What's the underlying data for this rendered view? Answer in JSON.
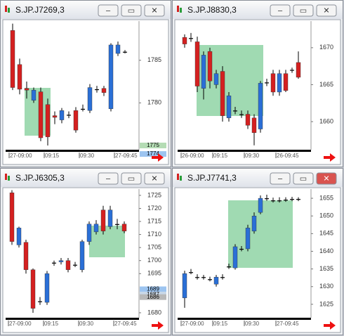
{
  "chart_data": [
    {
      "type": "candlestick",
      "title": "S.JP.J7269,3",
      "categories": [
        "27-09:00",
        null,
        null,
        null,
        null,
        "09:15",
        null,
        null,
        null,
        null,
        "09:30",
        null,
        null,
        null,
        null,
        "27-09:45",
        null
      ],
      "open": [
        1788.5,
        1784.5,
        1781.7,
        1780.3,
        1781.3,
        1779.8,
        1778.5,
        1778,
        1778.6,
        1779.1,
        1779.3,
        1779.1,
        1781.6,
        1781.7,
        1779.3,
        1785.8,
        1786
      ],
      "high": [
        1789.3,
        1785.2,
        1782.5,
        1781.8,
        1781.8,
        1780.5,
        1779,
        1779.4,
        1779,
        1779.5,
        1779.8,
        1782.2,
        1782,
        1782,
        1787,
        1787.2,
        1786.2
      ],
      "low": [
        1781.5,
        1781,
        1780.5,
        1780,
        1775.5,
        1775,
        1777.5,
        1777.6,
        1778.2,
        1776.5,
        1779,
        1778.8,
        1781.2,
        1780.8,
        1779,
        1785.5,
        1785.8
      ],
      "close": [
        1781.8,
        1781.6,
        1781.5,
        1781.5,
        1775.9,
        1776,
        1778.3,
        1779.1,
        1778.6,
        1776.8,
        1779.3,
        1781.8,
        1781.6,
        1781.2,
        1786.8,
        1786.8,
        1786
      ],
      "ylim": [
        1774.5,
        1789.6
      ],
      "yticks": [
        1780,
        1785
      ],
      "price_tags": [
        {
          "value": 1775,
          "color": "#b4dcb4"
        },
        {
          "value": 1774,
          "color": "#9cc4f0"
        }
      ]
    },
    {
      "type": "candlestick",
      "title": "S.JP.J8830,3",
      "categories": [
        "26-09:00",
        null,
        null,
        null,
        null,
        "09:15",
        null,
        null,
        null,
        null,
        "09:30",
        null,
        null,
        null,
        null,
        "26-09:45",
        null,
        null,
        null
      ],
      "open": [
        1671.4,
        1671.3,
        1670.8,
        1664.5,
        1669.5,
        1665,
        1666.8,
        1660.5,
        1661.5,
        1661,
        1661,
        1660.5,
        1659,
        1665.3,
        1666.5,
        1664,
        1666.5,
        1667,
        1668
      ],
      "high": [
        1671.8,
        1672,
        1671.5,
        1669.5,
        1670,
        1667,
        1667.5,
        1664,
        1662,
        1661.5,
        1661.5,
        1661,
        1665.5,
        1665.8,
        1667,
        1667,
        1667,
        1667.3,
        1669.5
      ],
      "low": [
        1670,
        1670.8,
        1664,
        1663,
        1664.5,
        1664.5,
        1660,
        1660,
        1661,
        1660.5,
        1659,
        1656.8,
        1658.5,
        1664.8,
        1663.5,
        1663.5,
        1664,
        1666.6,
        1665.8
      ],
      "close": [
        1670.5,
        1671.3,
        1664.8,
        1669,
        1665.5,
        1666.5,
        1660.8,
        1663.5,
        1661.5,
        1661,
        1659.5,
        1658.5,
        1665.2,
        1665.3,
        1664,
        1666.5,
        1664.2,
        1667,
        1666
      ],
      "ylim": [
        1656.2,
        1673.6
      ],
      "yticks": [
        1660,
        1665,
        1670
      ]
    },
    {
      "type": "candlestick",
      "title": "S.JP.J6305,3",
      "categories": [
        "27-09:00",
        null,
        null,
        null,
        null,
        "09:15",
        null,
        null,
        null,
        null,
        "09:30",
        null,
        null,
        null,
        null,
        "27-09:45",
        null
      ],
      "open": [
        1726,
        1706,
        1707,
        1696.5,
        1684.4,
        1684,
        1699.2,
        1699.5,
        1700,
        1698.4,
        1696.5,
        1707.3,
        1711,
        1719.4,
        1713,
        1714,
        1714
      ],
      "high": [
        1727,
        1713,
        1708,
        1697,
        1686,
        1696,
        1700,
        1701,
        1701,
        1699.5,
        1708,
        1715,
        1715.5,
        1721,
        1721,
        1716,
        1715
      ],
      "low": [
        1706,
        1705,
        1695,
        1680,
        1683,
        1683,
        1698,
        1698.5,
        1695.5,
        1697.5,
        1695.5,
        1706,
        1710,
        1710,
        1712,
        1712,
        1710.5
      ],
      "close": [
        1707.3,
        1712.5,
        1696.5,
        1681.7,
        1684.4,
        1695,
        1699.2,
        1700,
        1696.5,
        1698.4,
        1707.3,
        1714,
        1714,
        1711.3,
        1719.4,
        1714,
        1711.3
      ],
      "ylim": [
        1678.1,
        1727.4
      ],
      "yticks": [
        1680,
        1695,
        1700,
        1705,
        1710,
        1715,
        1720,
        1725
      ],
      "price_tags": [
        {
          "value": 1689,
          "color": "#9cc4f0"
        },
        {
          "value": 1687,
          "color": "#c8d8e8"
        },
        {
          "value": 1686,
          "color": "#b8b8b8"
        }
      ]
    },
    {
      "type": "candlestick",
      "title": "S.JP.J7741,3",
      "categories": [
        "27-09:00",
        null,
        null,
        null,
        null,
        "09:15",
        null,
        null,
        null,
        null,
        "09:30",
        null,
        null,
        null,
        null,
        "27-09:45",
        null,
        null,
        null
      ],
      "open": [
        1626.8,
        1634.1,
        1632.7,
        1632.7,
        1632.1,
        1630.7,
        1632.7,
        1635.7,
        1635.3,
        1640.7,
        1640.7,
        1645.7,
        1651,
        1655,
        1654.4,
        1654.4,
        1654.6,
        1654.8,
        1654.8
      ],
      "high": [
        1634.5,
        1635,
        1633.5,
        1633.3,
        1632.8,
        1633.3,
        1633.5,
        1636.5,
        1642,
        1641.5,
        1647.5,
        1651,
        1655.8,
        1656,
        1655.2,
        1655.3,
        1655.3,
        1655.4,
        1655.3
      ],
      "low": [
        1624,
        1633.5,
        1632,
        1632,
        1631.5,
        1630,
        1632,
        1635,
        1634.8,
        1640,
        1640,
        1645,
        1650.5,
        1654.3,
        1653.8,
        1653.8,
        1654,
        1654.2,
        1654.2
      ],
      "close": [
        1633.7,
        1634.1,
        1632.7,
        1632.7,
        1632.1,
        1632.7,
        1632.7,
        1635.7,
        1641.3,
        1640.7,
        1646.6,
        1650,
        1655,
        1655,
        1654.4,
        1654.4,
        1654.6,
        1654.8,
        1654.8
      ],
      "ylim": [
        1621.2,
        1657.6
      ],
      "yticks": [
        1625,
        1630,
        1635,
        1640,
        1645,
        1650,
        1655
      ]
    }
  ]
}
